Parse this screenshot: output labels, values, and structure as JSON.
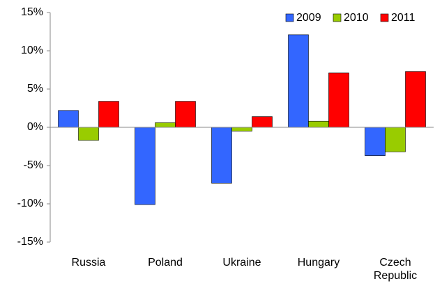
{
  "chart_data": {
    "type": "bar",
    "categories": [
      "Russia",
      "Poland",
      "Ukraine",
      "Hungary",
      "Czech Republic"
    ],
    "series": [
      {
        "name": "2009",
        "color": "#3366ff",
        "values": [
          2.2,
          -10.1,
          -7.3,
          12.1,
          -3.7
        ]
      },
      {
        "name": "2010",
        "color": "#99cc00",
        "values": [
          -1.7,
          0.6,
          -0.5,
          0.8,
          -3.2
        ]
      },
      {
        "name": "2011",
        "color": "#ff0000",
        "values": [
          3.4,
          3.4,
          1.4,
          7.1,
          7.3
        ]
      }
    ],
    "ylim": [
      -15,
      15
    ],
    "yticks": [
      {
        "value": -15,
        "label": "-15%"
      },
      {
        "value": -10,
        "label": "-10%"
      },
      {
        "value": -5,
        "label": "-5%"
      },
      {
        "value": 0,
        "label": "0%"
      },
      {
        "value": 5,
        "label": "5%"
      },
      {
        "value": 10,
        "label": "10%"
      },
      {
        "value": 15,
        "label": "15%"
      }
    ],
    "legend": "top-right"
  }
}
